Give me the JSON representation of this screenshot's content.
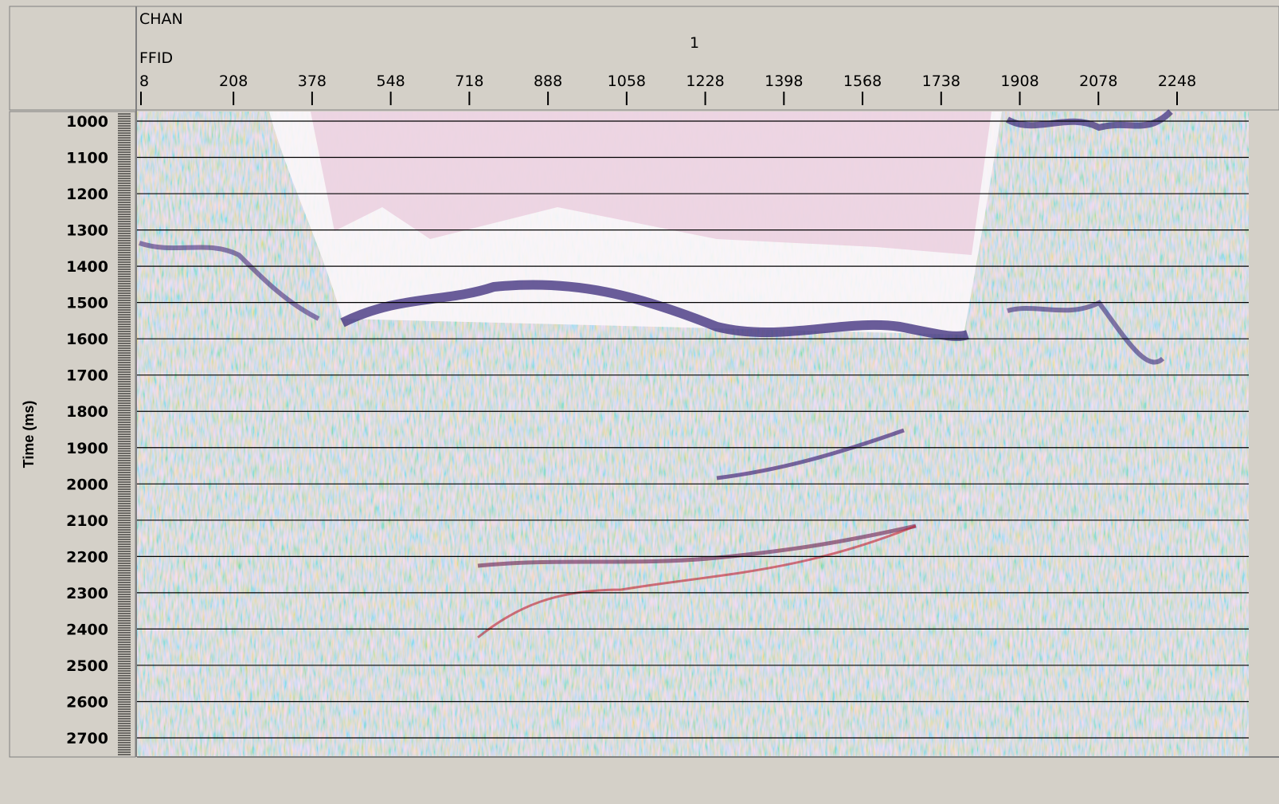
{
  "header": {
    "chan_label": "CHAN",
    "chan_value": "1",
    "ffid_label": "FFID",
    "ffid_ticks": [
      "8",
      "208",
      "378",
      "548",
      "718",
      "888",
      "1058",
      "1228",
      "1398",
      "1568",
      "1738",
      "1908",
      "2078",
      "2248"
    ]
  },
  "y_axis": {
    "label": "Time (ms)",
    "ticks": [
      "1000",
      "1100",
      "1200",
      "1300",
      "1400",
      "1500",
      "1600",
      "1700",
      "1800",
      "1900",
      "2000",
      "2100",
      "2200",
      "2300",
      "2400",
      "2500",
      "2600",
      "2700"
    ]
  }
}
